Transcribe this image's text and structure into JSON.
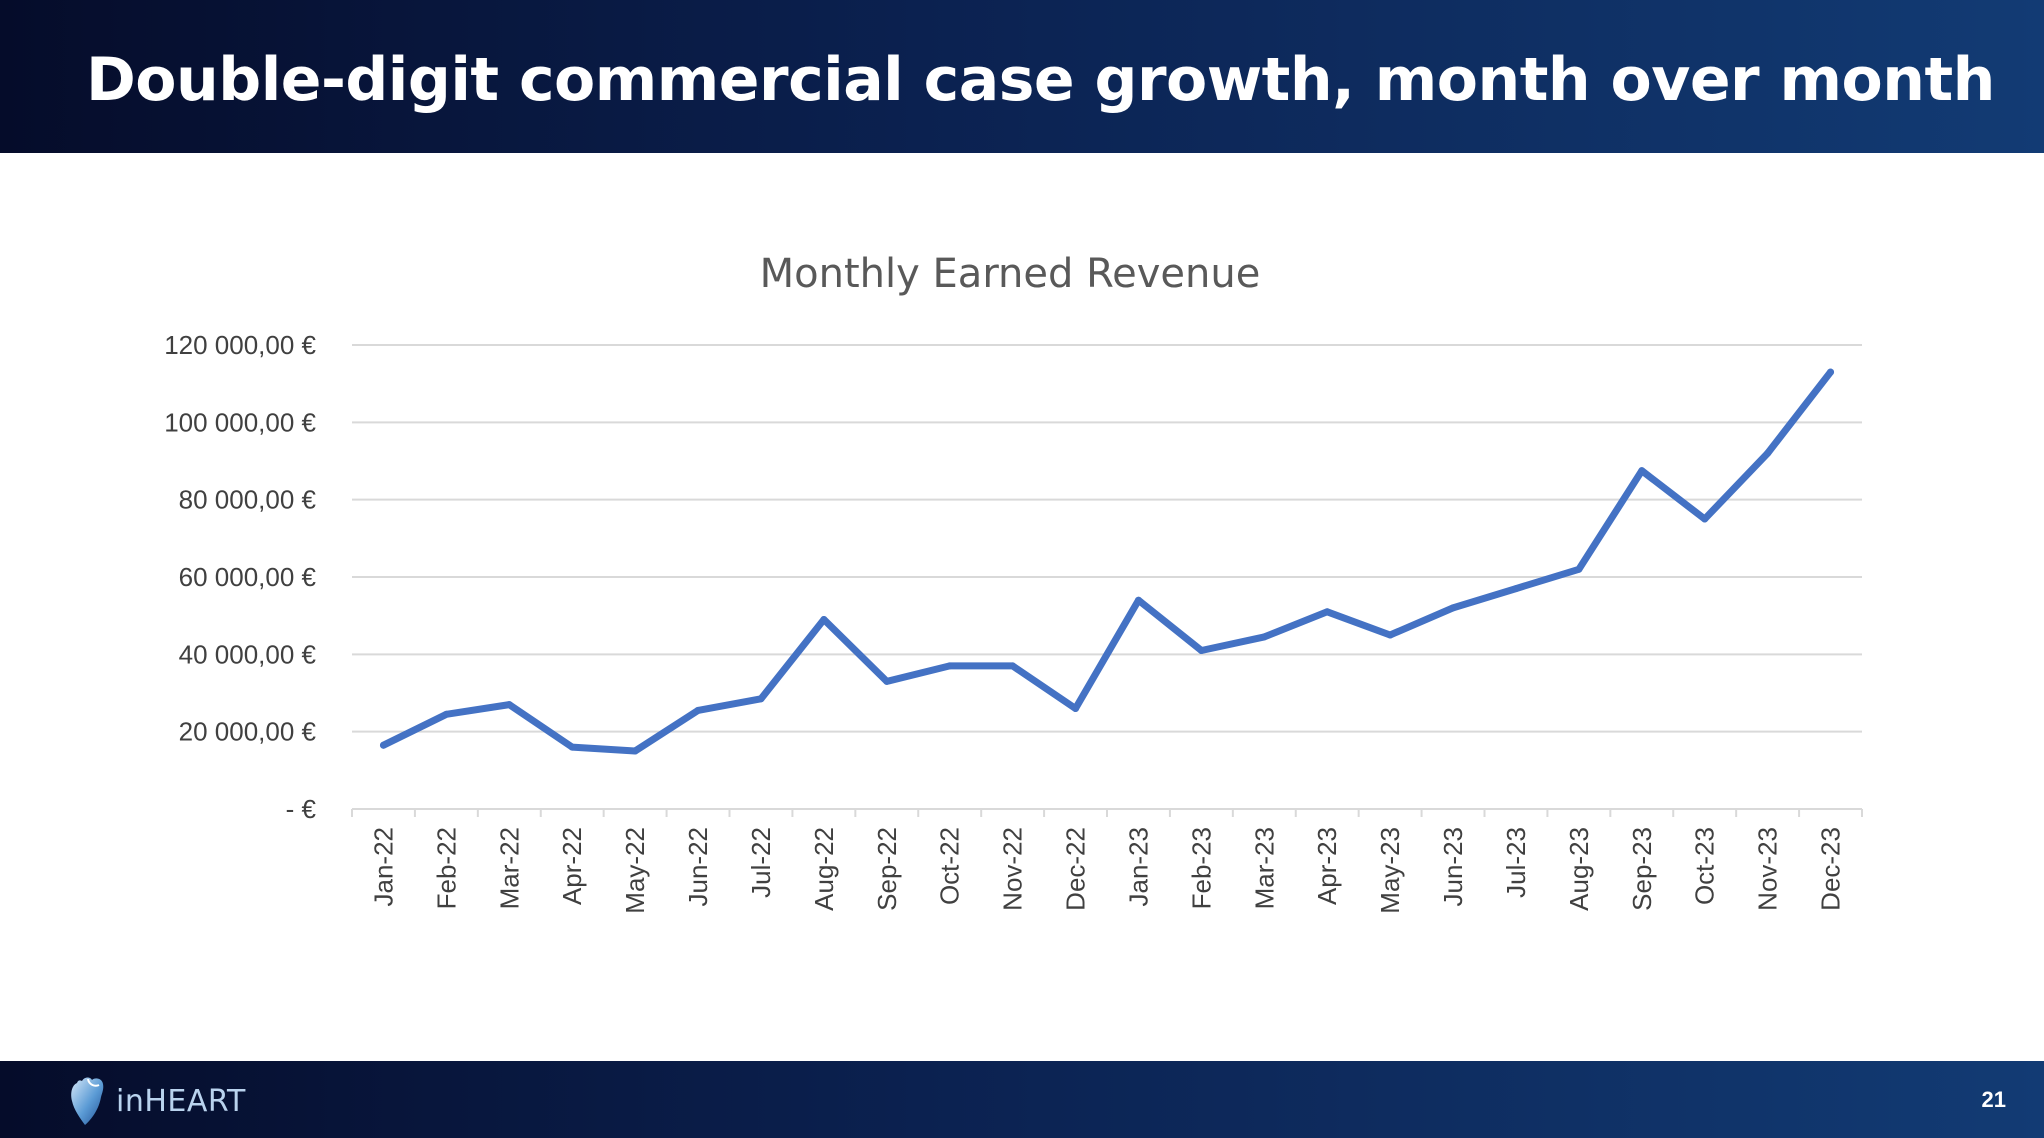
{
  "header": {
    "title": "Double-digit commercial case growth, month over month"
  },
  "footer": {
    "logo_text": "inHEART",
    "logo_icon": "heart-logo-icon",
    "page_number": "21"
  },
  "colors": {
    "header_dark": "#050c2a",
    "header_light": "#123b74",
    "line": "#4472c4",
    "grid": "#d9d9d9"
  },
  "chart_data": {
    "type": "line",
    "title": "Monthly Earned Revenue",
    "xlabel": "",
    "ylabel": "",
    "ylim": [
      0,
      120000
    ],
    "y_ticks": [
      0,
      20000,
      40000,
      60000,
      80000,
      100000,
      120000
    ],
    "y_tick_labels": [
      "-  €",
      "20 000,00 €",
      "40 000,00 €",
      "60 000,00 €",
      "80 000,00 €",
      "100 000,00 €",
      "120 000,00 €"
    ],
    "grid": true,
    "legend": "none",
    "categories": [
      "Jan-22",
      "Feb-22",
      "Mar-22",
      "Apr-22",
      "May-22",
      "Jun-22",
      "Jul-22",
      "Aug-22",
      "Sep-22",
      "Oct-22",
      "Nov-22",
      "Dec-22",
      "Jan-23",
      "Feb-23",
      "Mar-23",
      "Apr-23",
      "May-23",
      "Jun-23",
      "Jul-23",
      "Aug-23",
      "Sep-23",
      "Oct-23",
      "Nov-23",
      "Dec-23"
    ],
    "series": [
      {
        "values": [
          16500,
          24500,
          27000,
          16000,
          15000,
          25500,
          28500,
          49000,
          33000,
          37000,
          37000,
          26000,
          54000,
          41000,
          44500,
          51000,
          45000,
          52000,
          57000,
          62000,
          87500,
          75000,
          92000,
          113000
        ]
      }
    ]
  }
}
